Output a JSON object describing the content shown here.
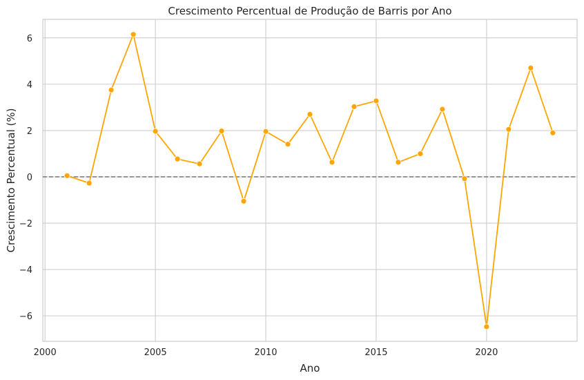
{
  "chart_data": {
    "type": "line",
    "title": "Crescimento Percentual de Produção de Barris por Ano",
    "xlabel": "Ano",
    "ylabel": "Crescimento Percentual (%)",
    "xlim": [
      1999.9,
      2024.1
    ],
    "ylim": [
      -7.1,
      6.8
    ],
    "xticks": [
      2000,
      2005,
      2010,
      2015,
      2020
    ],
    "yticks": [
      -6,
      -4,
      -2,
      0,
      2,
      4,
      6
    ],
    "grid": true,
    "reference_line": {
      "y": 0,
      "style": "dashed",
      "color": "#808080"
    },
    "series": [
      {
        "color": "#FFA500",
        "x": [
          2001,
          2002,
          2003,
          2004,
          2005,
          2006,
          2007,
          2008,
          2009,
          2010,
          2011,
          2012,
          2013,
          2014,
          2015,
          2016,
          2017,
          2018,
          2019,
          2020,
          2021,
          2022,
          2023
        ],
        "y": [
          0.05,
          -0.27,
          3.75,
          6.15,
          1.97,
          0.77,
          0.56,
          1.98,
          -1.05,
          1.96,
          1.41,
          2.7,
          0.63,
          3.03,
          3.28,
          0.63,
          1.0,
          2.92,
          -0.08,
          -6.47,
          2.05,
          4.7,
          1.9
        ]
      }
    ]
  }
}
